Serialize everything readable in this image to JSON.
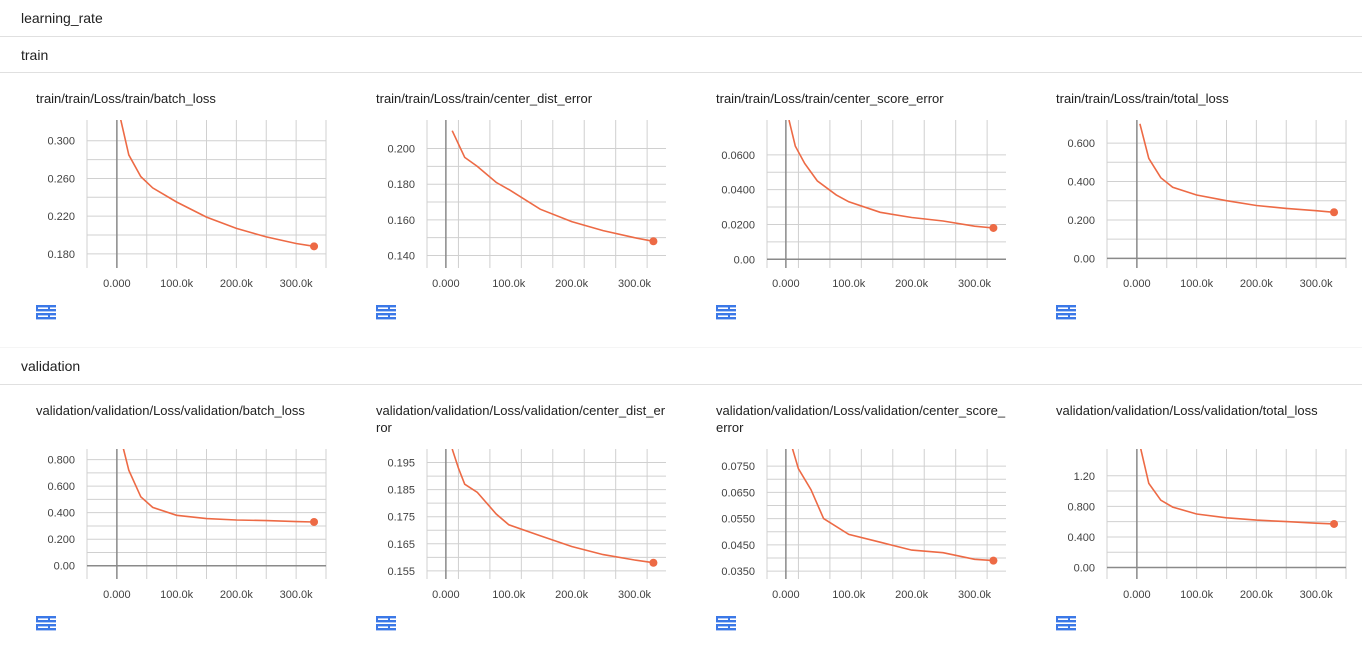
{
  "header": {
    "top_label": "learning_rate"
  },
  "colors": {
    "line": "#ed6a45",
    "grid": "#d0d0d0",
    "axis": "#8a8a8a",
    "icon": "#3b78e7"
  },
  "icons": {
    "fit": "fit-domain-icon",
    "log": "log-scale-icon"
  },
  "sections": [
    {
      "name": "train",
      "cards": [
        {
          "title": "train/train/Loss/train/batch_loss",
          "yticks": [
            "0.300",
            "0.260",
            "0.220",
            "0.180"
          ],
          "xticks": [
            "0.000",
            "100.0k",
            "200.0k",
            "300.0k"
          ]
        },
        {
          "title": "train/train/Loss/train/center_dist_error",
          "yticks": [
            "0.200",
            "0.180",
            "0.160",
            "0.140"
          ],
          "xticks": [
            "0.000",
            "100.0k",
            "200.0k",
            "300.0k"
          ]
        },
        {
          "title": "train/train/Loss/train/center_score_error",
          "yticks": [
            "0.0600",
            "0.0400",
            "0.0200",
            "0.00"
          ],
          "xticks": [
            "0.000",
            "100.0k",
            "200.0k",
            "300.0k"
          ]
        },
        {
          "title": "train/train/Loss/train/total_loss",
          "yticks": [
            "0.600",
            "0.400",
            "0.200",
            "0.00"
          ],
          "xticks": [
            "0.000",
            "100.0k",
            "200.0k",
            "300.0k"
          ]
        }
      ]
    },
    {
      "name": "validation",
      "cards": [
        {
          "title": "validation/validation/Loss/validation/batch_loss",
          "yticks": [
            "0.800",
            "0.600",
            "0.400",
            "0.200",
            "0.00"
          ],
          "xticks": [
            "0.000",
            "100.0k",
            "200.0k",
            "300.0k"
          ]
        },
        {
          "title": "validation/validation/Loss/validation/center_dist_error",
          "yticks": [
            "0.195",
            "0.185",
            "0.175",
            "0.165",
            "0.155"
          ],
          "xticks": [
            "0.000",
            "100.0k",
            "200.0k",
            "300.0k"
          ]
        },
        {
          "title": "validation/validation/Loss/validation/center_score_error",
          "yticks": [
            "0.0750",
            "0.0650",
            "0.0550",
            "0.0450",
            "0.0350"
          ],
          "xticks": [
            "0.000",
            "100.0k",
            "200.0k",
            "300.0k"
          ]
        },
        {
          "title": "validation/validation/Loss/validation/total_loss",
          "yticks": [
            "1.20",
            "0.800",
            "0.400",
            "0.00"
          ],
          "xticks": [
            "0.000",
            "100.0k",
            "200.0k",
            "300.0k"
          ]
        }
      ]
    }
  ],
  "chart_data": [
    {
      "type": "line",
      "title": "train/train/Loss/train/batch_loss",
      "ylim": [
        0.165,
        0.322
      ],
      "xlim": [
        -50000,
        350000
      ],
      "x": [
        0,
        20000,
        40000,
        60000,
        100000,
        150000,
        200000,
        250000,
        300000,
        330000
      ],
      "y": [
        0.34,
        0.285,
        0.262,
        0.25,
        0.235,
        0.219,
        0.207,
        0.198,
        0.191,
        0.188
      ]
    },
    {
      "type": "line",
      "title": "train/train/Loss/train/center_dist_error",
      "ylim": [
        0.133,
        0.216
      ],
      "xlim": [
        -30000,
        350000
      ],
      "x": [
        10000,
        30000,
        50000,
        80000,
        100000,
        150000,
        200000,
        250000,
        300000,
        330000
      ],
      "y": [
        0.21,
        0.195,
        0.19,
        0.181,
        0.177,
        0.166,
        0.159,
        0.154,
        0.15,
        0.148
      ]
    },
    {
      "type": "line",
      "title": "train/train/Loss/train/center_score_error",
      "ylim": [
        -0.005,
        0.08
      ],
      "xlim": [
        -30000,
        350000
      ],
      "x": [
        5000,
        15000,
        30000,
        50000,
        80000,
        100000,
        150000,
        200000,
        250000,
        300000,
        330000
      ],
      "y": [
        0.08,
        0.065,
        0.055,
        0.045,
        0.037,
        0.033,
        0.027,
        0.024,
        0.022,
        0.019,
        0.018
      ]
    },
    {
      "type": "line",
      "title": "train/train/Loss/train/total_loss",
      "ylim": [
        -0.05,
        0.72
      ],
      "xlim": [
        -50000,
        350000
      ],
      "x": [
        5000,
        20000,
        40000,
        60000,
        100000,
        150000,
        200000,
        250000,
        300000,
        330000
      ],
      "y": [
        0.7,
        0.52,
        0.42,
        0.37,
        0.33,
        0.3,
        0.275,
        0.26,
        0.248,
        0.24
      ]
    },
    {
      "type": "line",
      "title": "validation/validation/Loss/validation/batch_loss",
      "ylim": [
        -0.1,
        0.88
      ],
      "xlim": [
        -50000,
        350000
      ],
      "x": [
        10000,
        20000,
        40000,
        60000,
        100000,
        150000,
        200000,
        250000,
        300000,
        330000
      ],
      "y": [
        0.9,
        0.72,
        0.52,
        0.44,
        0.38,
        0.355,
        0.345,
        0.34,
        0.333,
        0.33
      ]
    },
    {
      "type": "line",
      "title": "validation/validation/Loss/validation/center_dist_error",
      "ylim": [
        0.152,
        0.2
      ],
      "xlim": [
        -30000,
        350000
      ],
      "x": [
        10000,
        20000,
        30000,
        50000,
        80000,
        100000,
        150000,
        200000,
        250000,
        300000,
        330000
      ],
      "y": [
        0.2,
        0.193,
        0.187,
        0.184,
        0.176,
        0.172,
        0.168,
        0.164,
        0.161,
        0.159,
        0.158
      ]
    },
    {
      "type": "line",
      "title": "validation/validation/Loss/validation/center_score_error",
      "ylim": [
        0.032,
        0.0815
      ],
      "xlim": [
        -30000,
        350000
      ],
      "x": [
        10000,
        20000,
        40000,
        60000,
        100000,
        150000,
        200000,
        250000,
        300000,
        330000
      ],
      "y": [
        0.082,
        0.074,
        0.066,
        0.055,
        0.049,
        0.046,
        0.043,
        0.042,
        0.0395,
        0.039
      ]
    },
    {
      "type": "line",
      "title": "validation/validation/Loss/validation/total_loss",
      "ylim": [
        -0.15,
        1.55
      ],
      "xlim": [
        -50000,
        350000
      ],
      "x": [
        5000,
        20000,
        40000,
        60000,
        100000,
        150000,
        200000,
        250000,
        300000,
        330000
      ],
      "y": [
        1.6,
        1.1,
        0.88,
        0.79,
        0.7,
        0.65,
        0.62,
        0.6,
        0.58,
        0.57
      ]
    }
  ]
}
